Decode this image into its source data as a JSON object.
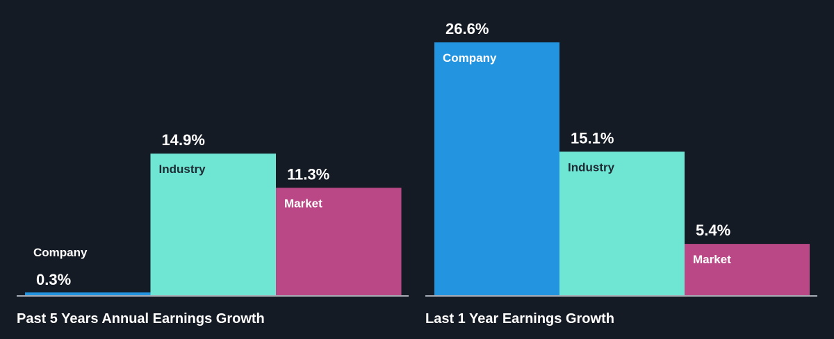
{
  "chart_data": [
    {
      "type": "bar",
      "title": "Past 5 Years Annual Earnings Growth",
      "categories": [
        "Company",
        "Industry",
        "Market"
      ],
      "values": [
        0.3,
        14.9,
        11.3
      ],
      "value_labels": [
        "0.3%",
        "14.9%",
        "11.3%"
      ],
      "colors": [
        "#2394e0",
        "#6fe6d4",
        "#bb4886"
      ],
      "label_colors": [
        "#ffffff",
        "#1f2a33",
        "#ffffff"
      ],
      "ylim": [
        0,
        26.6
      ],
      "grid": false,
      "legend": "none"
    },
    {
      "type": "bar",
      "title": "Last 1 Year Earnings Growth",
      "categories": [
        "Company",
        "Industry",
        "Market"
      ],
      "values": [
        26.6,
        15.1,
        5.4
      ],
      "value_labels": [
        "26.6%",
        "15.1%",
        "5.4%"
      ],
      "colors": [
        "#2394e0",
        "#6fe6d4",
        "#bb4886"
      ],
      "label_colors": [
        "#ffffff",
        "#1f2a33",
        "#ffffff"
      ],
      "ylim": [
        0,
        26.6
      ],
      "grid": false,
      "legend": "none"
    }
  ],
  "colors": {
    "background": "#151b24",
    "baseline": "#d9dde3",
    "text": "#ffffff"
  }
}
